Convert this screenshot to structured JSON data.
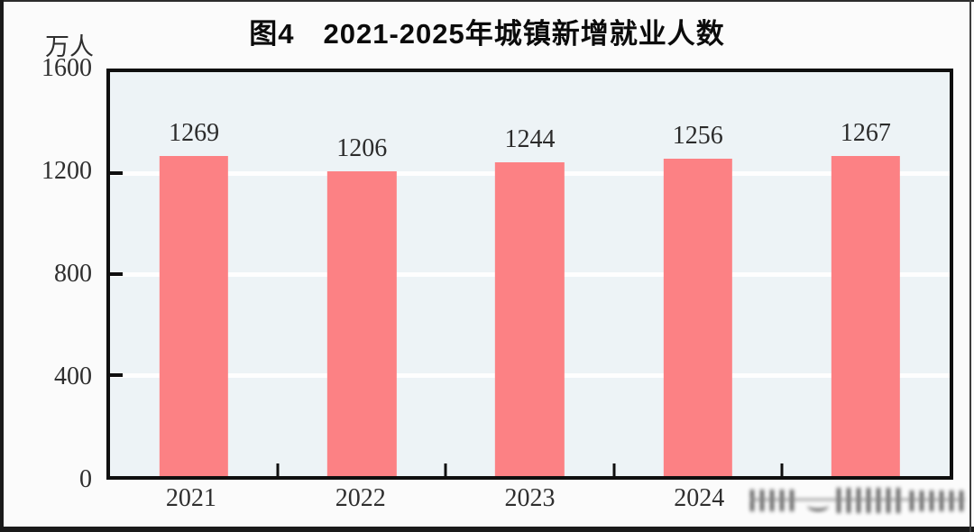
{
  "header": {
    "title": "图4　2021-2025年城镇新增就业人数"
  },
  "y_axis": {
    "unit": "万人"
  },
  "chart_data": {
    "type": "bar",
    "title": "图4 2021-2025年城镇新增就业人数",
    "categories": [
      "2021",
      "2022",
      "2023",
      "2024",
      "2025"
    ],
    "values": [
      1269,
      1206,
      1244,
      1256,
      1267
    ],
    "x_labels_visible": [
      "2021",
      "2022",
      "2023",
      "2024",
      ""
    ],
    "xlabel": "",
    "ylabel": "万人",
    "ylim": [
      0,
      1600
    ],
    "yticks": [
      0,
      400,
      800,
      1200,
      1600
    ],
    "grid": true,
    "legend": false,
    "data_labels_shown": true,
    "bar_color": "#fc8184",
    "plot_bg_color": "#edf3f6",
    "gridline_color": "#ffffff",
    "axis_color": "#0f0f0f"
  },
  "watermark": {
    "name": "blurred-watermark",
    "legible_text": ""
  }
}
